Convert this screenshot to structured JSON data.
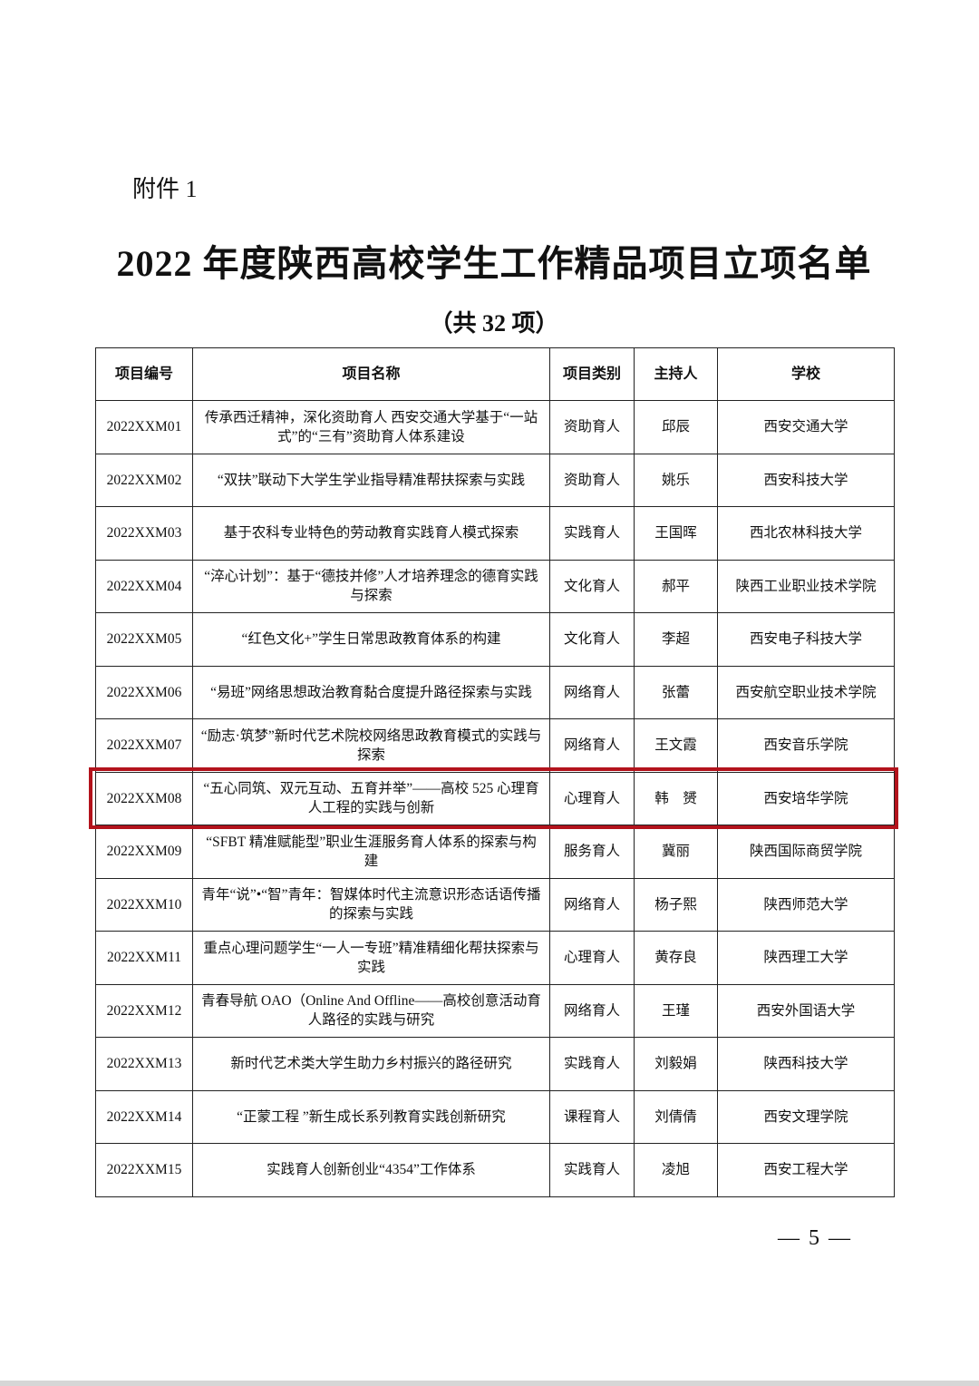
{
  "attachment_label": "附件 1",
  "title": "2022 年度陕西高校学生工作精品项目立项名单",
  "count_note": "（共 32 项）",
  "table": {
    "headers": [
      "项目编号",
      "项目名称",
      "项目类别",
      "主持人",
      "学校"
    ],
    "rows": [
      [
        "2022XXM01",
        "传承西迁精神，深化资助育人 西安交通大学基于“一站式”的“三有”资助育人体系建设",
        "资助育人",
        "邱辰",
        "西安交通大学"
      ],
      [
        "2022XXM02",
        "“双扶”联动下大学生学业指导精准帮扶探索与实践",
        "资助育人",
        "姚乐",
        "西安科技大学"
      ],
      [
        "2022XXM03",
        "基于农科专业特色的劳动教育实践育人模式探索",
        "实践育人",
        "王国晖",
        "西北农林科技大学"
      ],
      [
        "2022XXM04",
        "“淬心计划”：基于“德技并修”人才培养理念的德育实践与探索",
        "文化育人",
        "郝平",
        "陕西工业职业技术学院"
      ],
      [
        "2022XXM05",
        "“红色文化+”学生日常思政教育体系的构建",
        "文化育人",
        "李超",
        "西安电子科技大学"
      ],
      [
        "2022XXM06",
        "“易班”网络思想政治教育黏合度提升路径探索与实践",
        "网络育人",
        "张蕾",
        "西安航空职业技术学院"
      ],
      [
        "2022XXM07",
        "“励志·筑梦”新时代艺术院校网络思政教育模式的实践与探索",
        "网络育人",
        "王文霞",
        "西安音乐学院"
      ],
      [
        "2022XXM08",
        "“五心同筑、双元互动、五育并举”——高校 525 心理育人工程的实践与创新",
        "心理育人",
        "韩　赟",
        "西安培华学院"
      ],
      [
        "2022XXM09",
        "“SFBT 精准赋能型”职业生涯服务育人体系的探索与构建",
        "服务育人",
        "冀丽",
        "陕西国际商贸学院"
      ],
      [
        "2022XXM10",
        "青年“说”•“智”青年：智媒体时代主流意识形态话语传播的探索与实践",
        "网络育人",
        "杨子熙",
        "陕西师范大学"
      ],
      [
        "2022XXM11",
        "重点心理问题学生“一人一专班”精准精细化帮扶探索与实践",
        "心理育人",
        "黄存良",
        "陕西理工大学"
      ],
      [
        "2022XXM12",
        "青春导航 OAO（Online And Offline——高校创意活动育人路径的实践与研究",
        "网络育人",
        "王瑾",
        "西安外国语大学"
      ],
      [
        "2022XXM13",
        "新时代艺术类大学生助力乡村振兴的路径研究",
        "实践育人",
        "刘毅娟",
        "陕西科技大学"
      ],
      [
        "2022XXM14",
        "“正蒙工程 ”新生成长系列教育实践创新研究",
        "课程育人",
        "刘倩倩",
        "西安文理学院"
      ],
      [
        "2022XXM15",
        "实践育人创新创业“4354”工作体系",
        "实践育人",
        "凌旭",
        "西安工程大学"
      ]
    ],
    "highlighted_row": "2022XXM08",
    "highlight_color": "#b3131c"
  },
  "page_number": "— 5 —"
}
